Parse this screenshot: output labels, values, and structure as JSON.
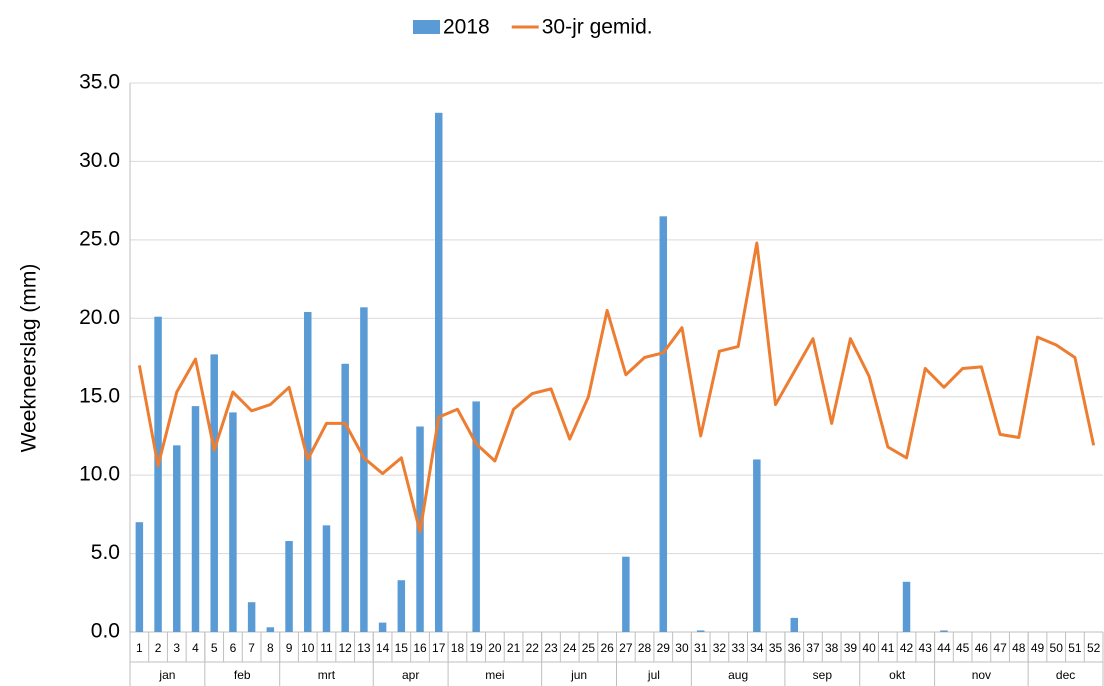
{
  "chart_data": {
    "type": "bar_line",
    "y_label": "Weekneerslag (mm)",
    "categories": [
      "1",
      "2",
      "3",
      "4",
      "5",
      "6",
      "7",
      "8",
      "9",
      "10",
      "11",
      "12",
      "13",
      "14",
      "15",
      "16",
      "17",
      "18",
      "19",
      "20",
      "21",
      "22",
      "23",
      "24",
      "25",
      "26",
      "27",
      "28",
      "29",
      "30",
      "31",
      "32",
      "33",
      "34",
      "35",
      "36",
      "37",
      "38",
      "39",
      "40",
      "41",
      "42",
      "43",
      "44",
      "45",
      "46",
      "47",
      "48",
      "49",
      "50",
      "51",
      "52"
    ],
    "month_groups": [
      {
        "label": "jan",
        "weeks": 4
      },
      {
        "label": "feb",
        "weeks": 4
      },
      {
        "label": "mrt",
        "weeks": 5
      },
      {
        "label": "apr",
        "weeks": 4
      },
      {
        "label": "mei",
        "weeks": 5
      },
      {
        "label": "jun",
        "weeks": 4
      },
      {
        "label": "jul",
        "weeks": 4
      },
      {
        "label": "aug",
        "weeks": 5
      },
      {
        "label": "sep",
        "weeks": 4
      },
      {
        "label": "okt",
        "weeks": 4
      },
      {
        "label": "nov",
        "weeks": 5
      },
      {
        "label": "dec",
        "weeks": 4
      }
    ],
    "series": [
      {
        "name": "2018",
        "type": "bar",
        "color": "#5b9bd5",
        "values": [
          7.0,
          20.1,
          11.9,
          14.4,
          17.7,
          14.0,
          1.9,
          0.3,
          5.8,
          20.4,
          6.8,
          17.1,
          20.7,
          0.6,
          3.3,
          13.1,
          33.1,
          0,
          14.7,
          0,
          0,
          0,
          0,
          0,
          0,
          0,
          4.8,
          0,
          26.5,
          0,
          0.1,
          0,
          0,
          11.0,
          0,
          0.9,
          0,
          0,
          0,
          0,
          0,
          3.2,
          0,
          0.1,
          0,
          0,
          0,
          0,
          0,
          0,
          0,
          0
        ]
      },
      {
        "name": "30-jr gemid.",
        "type": "line",
        "color": "#ed7d31",
        "values": [
          17.0,
          10.6,
          15.3,
          17.4,
          11.6,
          15.3,
          14.1,
          14.5,
          15.6,
          11.0,
          13.3,
          13.3,
          11.1,
          10.1,
          11.1,
          6.4,
          13.7,
          14.2,
          12.0,
          10.9,
          14.2,
          15.2,
          15.5,
          12.3,
          15.0,
          20.5,
          16.4,
          17.5,
          17.8,
          19.4,
          12.5,
          17.9,
          18.2,
          24.8,
          14.5,
          16.6,
          18.7,
          13.3,
          18.7,
          16.3,
          11.8,
          11.1,
          16.8,
          15.6,
          16.8,
          16.9,
          12.6,
          12.4,
          18.8,
          18.3,
          17.5,
          11.9
        ]
      }
    ],
    "ylim": [
      0,
      35
    ],
    "yticks": [
      {
        "value": 0,
        "label": "0.0"
      },
      {
        "value": 5,
        "label": "5.0"
      },
      {
        "value": 10,
        "label": "10.0"
      },
      {
        "value": 15,
        "label": "15.0"
      },
      {
        "value": 20,
        "label": "20.0"
      },
      {
        "value": 25,
        "label": "25.0"
      },
      {
        "value": 30,
        "label": "30.0"
      },
      {
        "value": 35,
        "label": "35.0"
      }
    ],
    "grid": true
  }
}
